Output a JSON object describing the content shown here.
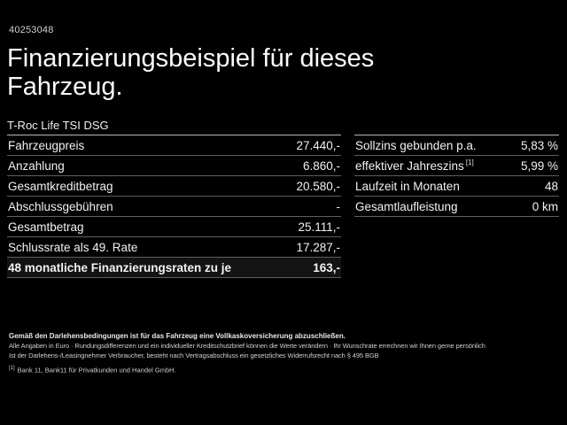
{
  "page": {
    "id_number": "40253048",
    "title": "Finanzierungsbeispiel für dieses Fahrzeug.",
    "vehicle_model": "T-Roc Life TSI DSG"
  },
  "finance_table": {
    "rows": [
      {
        "label": "Fahrzeugpreis",
        "value": "27.440,-"
      },
      {
        "label": "Anzahlung",
        "value": "6.860,-"
      },
      {
        "label": "Gesamtkreditbetrag",
        "value": "20.580,-"
      },
      {
        "label": "Abschlussgebühren",
        "value": "-"
      },
      {
        "label": "Gesamtbetrag",
        "value": "25.111,-"
      },
      {
        "label": "Schlussrate als 49. Rate",
        "value": "17.287,-"
      }
    ],
    "highlight_row": {
      "label": "48 monatliche Finanzierungsraten zu je",
      "value": "163,-"
    }
  },
  "conditions_table": {
    "rows": [
      {
        "label": "Sollzins gebunden p.a.",
        "footnote": "",
        "value": "5,83 %"
      },
      {
        "label": "effektiver Jahreszins",
        "footnote": "[1]",
        "value": "5,99 %"
      },
      {
        "label": "Laufzeit in Monaten",
        "footnote": "",
        "value": "48"
      },
      {
        "label": "Gesamtlaufleistung",
        "footnote": "",
        "value": "0 km"
      }
    ]
  },
  "footer": {
    "insurance_note": "Gemäß den Darlehensbedingungen ist für das Fahrzeug eine Vollkaskoversicherung abzuschließen.",
    "disclaimer_line1": "Alle Angaben in Euro · Rundungsdifferenzen und ein individueller Kreditschutzbrief können die Werte verändern · Ihr Wunschrate errechnen wir Ihnen gerne persönlich",
    "disclaimer_line2": "Ist der Darlehens-/Leasingnehmer Verbraucher, besteht nach Vertragsabschluss ein gesetzliches Widerrufsrecht nach § 495 BGB",
    "footnote_marker": "[1]",
    "footnote_text": "Bank 11, Bank11 für Privatkunden und Handel GmbH."
  },
  "colors": {
    "background": "#000000",
    "text_primary": "#f2f2f2",
    "divider_strong": "#b8b8b8",
    "divider": "#5f5f5f"
  }
}
